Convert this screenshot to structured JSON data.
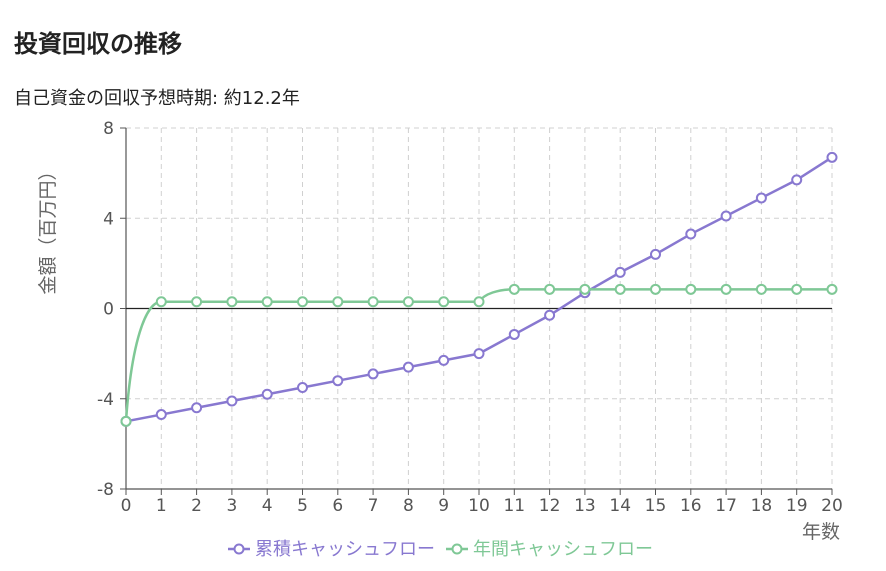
{
  "page": {
    "title": "投資回収の推移",
    "subtitle": "自己資金の回収予想時期: 約12.2年"
  },
  "colors": {
    "cumulative": "#8878d0",
    "annual": "#7fc896",
    "grid": "#d0d0d0",
    "axis": "#555555",
    "zero_line": "#222222"
  },
  "chart_data": {
    "type": "line",
    "title": "投資回収の推移",
    "subtitle": "自己資金の回収予想時期: 約12.2年",
    "xlabel": "年数",
    "ylabel": "金額（百万円）",
    "x": [
      0,
      1,
      2,
      3,
      4,
      5,
      6,
      7,
      8,
      9,
      10,
      11,
      12,
      13,
      14,
      15,
      16,
      17,
      18,
      19,
      20
    ],
    "xlim": [
      0,
      20
    ],
    "ylim": [
      -8,
      8
    ],
    "yticks": [
      -8,
      -4,
      0,
      4,
      8
    ],
    "xticks": [
      0,
      1,
      2,
      3,
      4,
      5,
      6,
      7,
      8,
      9,
      10,
      11,
      12,
      13,
      14,
      15,
      16,
      17,
      18,
      19,
      20
    ],
    "grid": true,
    "legend_position": "bottom-center",
    "series": [
      {
        "name": "累積キャッシュフロー",
        "color_key": "cumulative",
        "smooth": false,
        "values": [
          -5.0,
          -4.7,
          -4.4,
          -4.1,
          -3.8,
          -3.5,
          -3.2,
          -2.9,
          -2.6,
          -2.3,
          -2.0,
          -1.15,
          -0.3,
          0.7,
          1.6,
          2.4,
          3.3,
          4.1,
          4.9,
          5.7,
          6.7
        ]
      },
      {
        "name": "年間キャッシュフロー",
        "color_key": "annual",
        "smooth": true,
        "values": [
          -5.0,
          0.3,
          0.3,
          0.3,
          0.3,
          0.3,
          0.3,
          0.3,
          0.3,
          0.3,
          0.3,
          0.85,
          0.85,
          0.85,
          0.85,
          0.85,
          0.85,
          0.85,
          0.85,
          0.85,
          0.85
        ]
      }
    ]
  }
}
